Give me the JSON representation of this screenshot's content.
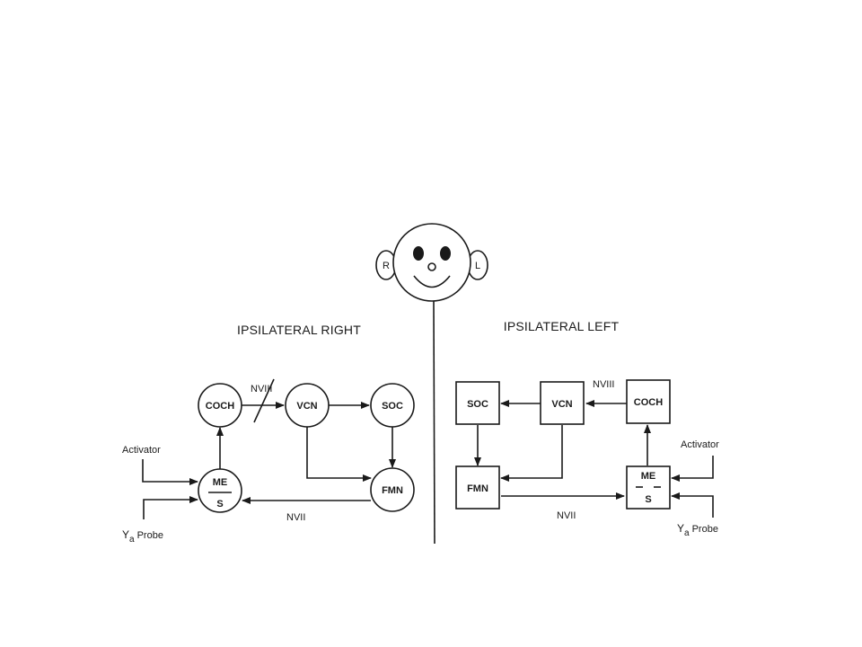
{
  "face": {
    "right_ear": "R",
    "left_ear": "L"
  },
  "right": {
    "title": "IPSILATERAL RIGHT",
    "nodes": {
      "coch": "COCH",
      "vcn": "VCN",
      "soc": "SOC",
      "fmn": "FMN",
      "me": "ME",
      "s": "S"
    },
    "edges": {
      "nviii": "NVIII",
      "nvii": "NVII"
    },
    "activator": "Activator",
    "probe_main": "Y",
    "probe_sub": "a",
    "probe_word": "Probe"
  },
  "left": {
    "title": "IPSILATERAL LEFT",
    "nodes": {
      "soc": "SOC",
      "vcn": "VCN",
      "coch": "COCH",
      "fmn": "FMN",
      "me": "ME",
      "s": "S"
    },
    "edges": {
      "nviii": "NVIII",
      "nvii": "NVII"
    },
    "activator": "Activator",
    "probe_main": "Y",
    "probe_sub": "a",
    "probe_word": "Probe"
  }
}
